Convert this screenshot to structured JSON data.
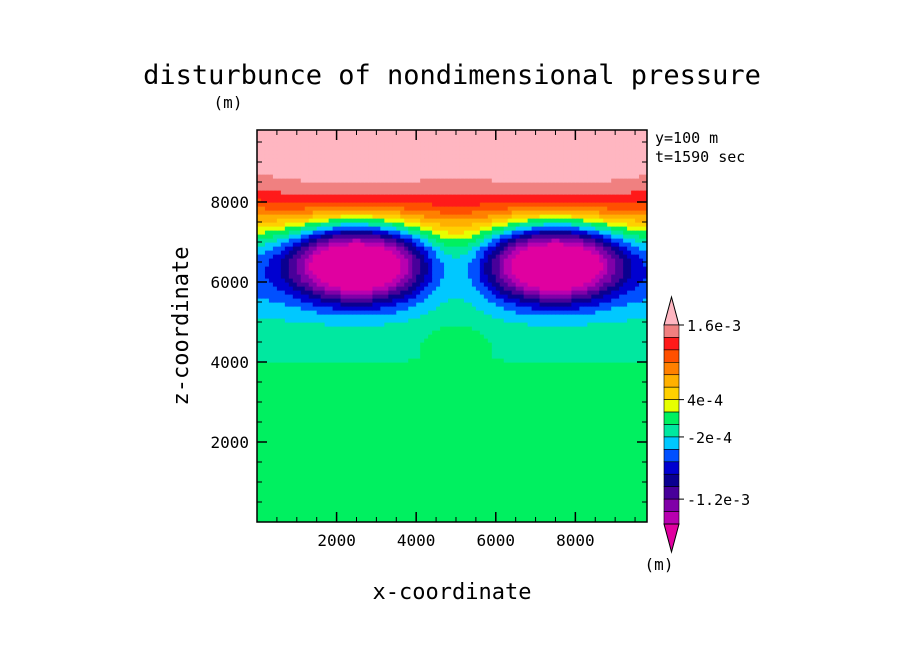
{
  "chart_data": {
    "type": "heatmap",
    "title": "disturbunce of nondimensional pressure",
    "xlabel": "x-coordinate",
    "ylabel": "z-coordinate",
    "y_unit": "(m)",
    "colorbar_unit": "(m)",
    "annotations": [
      "y=100 m",
      "t=1590 sec"
    ],
    "xlim": [
      0,
      9800
    ],
    "ylim": [
      0,
      9800
    ],
    "x_ticks": [
      2000,
      4000,
      6000,
      8000
    ],
    "y_ticks": [
      2000,
      4000,
      6000,
      8000
    ],
    "x_tick_labels": [
      "2000",
      "4000",
      "6000",
      "8000"
    ],
    "y_tick_labels": [
      "2000",
      "4000",
      "6000",
      "8000"
    ],
    "contour_levels": [
      -0.0016,
      -0.0014,
      -0.0012,
      -0.001,
      -0.0008,
      -0.0006,
      -0.0004,
      -0.0002,
      0,
      0.0002,
      0.0004,
      0.0006,
      0.0008,
      0.001,
      0.0012,
      0.0014,
      0.0016,
      0.0018
    ],
    "colorbar_tick_values": [
      0.0016,
      0.0004,
      -0.0002,
      -0.0012
    ],
    "colorbar_tick_labels": [
      "1.6e-3",
      "4e-4",
      "-2e-4",
      "-1.2e-3"
    ],
    "colors": [
      "#e000a0",
      "#b800b0",
      "#8000a8",
      "#48009a",
      "#0a0090",
      "#0000d0",
      "#0050ff",
      "#00c8ff",
      "#00e8a0",
      "#00f060",
      "#e6ff00",
      "#ffd000",
      "#ffb000",
      "#ff8000",
      "#ff5000",
      "#ff1a1a",
      "#f08080",
      "#ffb6c1"
    ],
    "features": {
      "negative_cores": [
        [
          2500,
          6600
        ],
        [
          7500,
          6600
        ]
      ],
      "minimum_value": -0.0016,
      "maximum_value": 0.0018,
      "background_value": 0.0001
    }
  }
}
